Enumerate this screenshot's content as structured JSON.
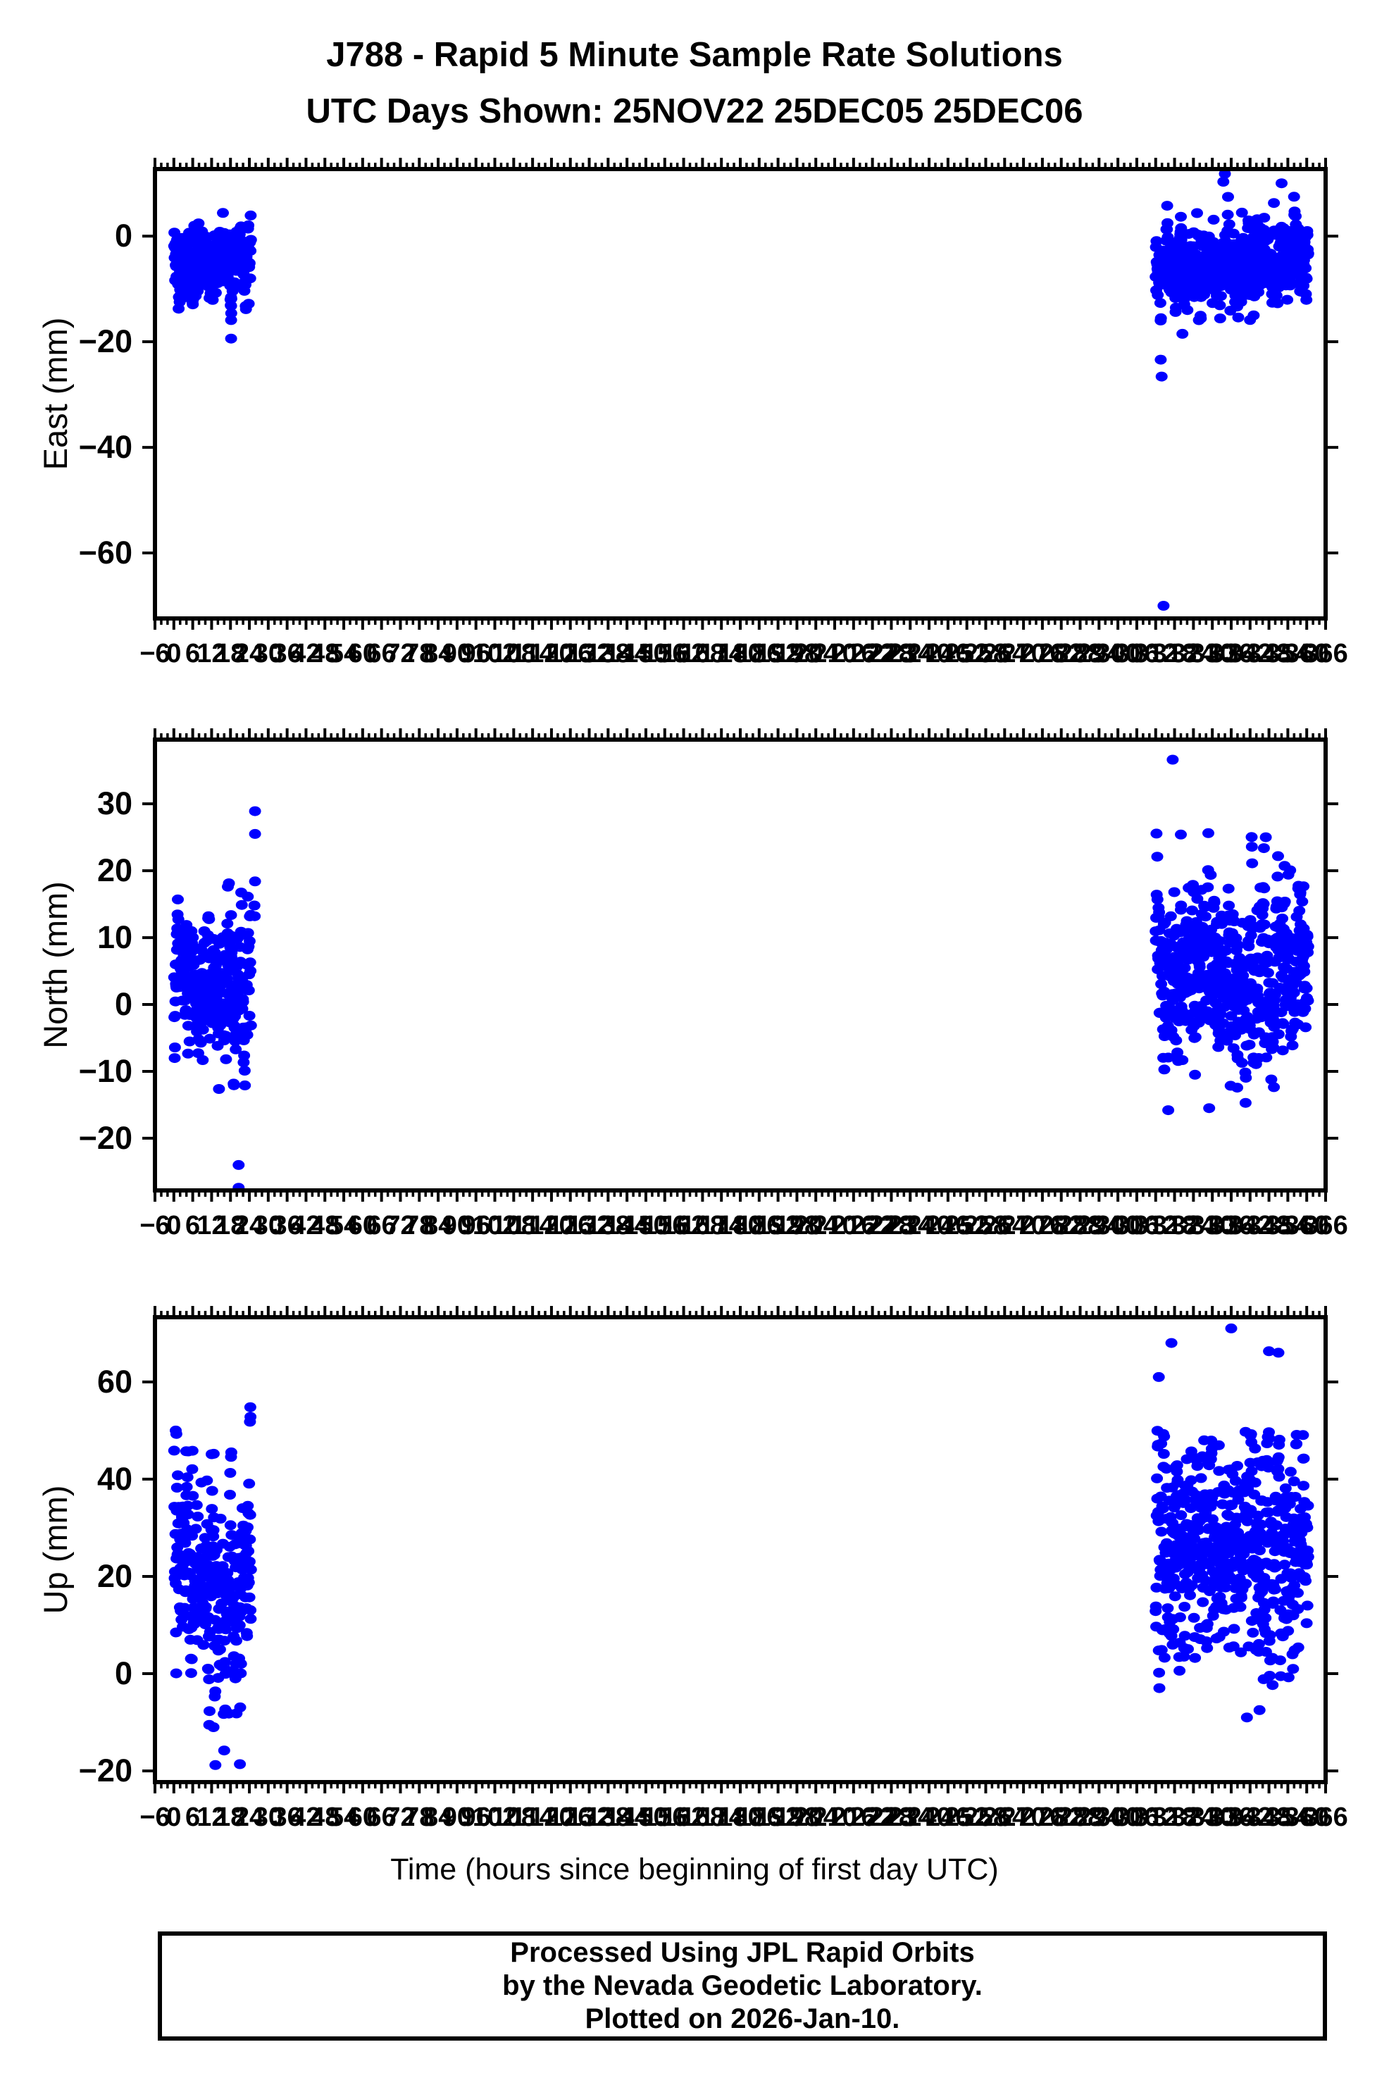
{
  "title": {
    "line1": "J788 - Rapid 5 Minute Sample Rate Solutions",
    "line2": "UTC Days Shown:  25NOV22 25DEC05 25DEC06"
  },
  "footer": {
    "line1": "Processed Using JPL Rapid Orbits",
    "line2": "by the Nevada Geodetic Laboratory.",
    "line3": "Plotted on 2026-Jan-10."
  },
  "colors": {
    "marker": "#0000ff",
    "frame": "#000000",
    "background": "#ffffff"
  },
  "chart_data": {
    "type": "scatter",
    "title": "J788 - Rapid 5 Minute Sample Rate Solutions",
    "subtitle": "UTC Days Shown:  25NOV22 25DEC05 25DEC06",
    "xlabel": "Time (hours since beginning of first day UTC)",
    "xlim": [
      -6,
      366
    ],
    "xtick_label_step": 6,
    "xtick_minor_step": 2,
    "sample_interval_hours": 0.0833,
    "legend": "none",
    "grid": "off",
    "marker_color": "#0000ff",
    "subplots": [
      {
        "ylabel": "East (mm)",
        "ylim": [
          -72.4,
          12.7
        ],
        "yticks": [
          0,
          -20,
          -40,
          -60
        ],
        "clusters": [
          {
            "x_start": 0.1,
            "x_end": 24.5,
            "mean": -4.5,
            "std": 4.0,
            "y_min": -14.0,
            "y_max": 8.6,
            "ar": 0.55,
            "seed": 3
          },
          {
            "x_start": 312.0,
            "x_end": 360.5,
            "mean": -7.0,
            "mean_end": -3.5,
            "std": 4.2,
            "y_min": -16.0,
            "y_max": 7.5,
            "ar": 0.55,
            "seed": 4
          }
        ],
        "outliers": [
          [
            18.2,
            -13.2
          ],
          [
            18.25,
            -14.6
          ],
          [
            18.2,
            -15.9
          ],
          [
            18.2,
            -19.4
          ],
          [
            23.8,
            -12.8
          ],
          [
            313.6,
            -23.4
          ],
          [
            313.9,
            -26.6
          ],
          [
            320.5,
            -18.5
          ],
          [
            333.5,
            10.3
          ],
          [
            334.0,
            11.8
          ],
          [
            352.0,
            10.0
          ],
          [
            314.5,
            -70.0
          ]
        ]
      },
      {
        "ylabel": "North (mm)",
        "ylim": [
          -27.8,
          39.6
        ],
        "yticks": [
          30,
          20,
          10,
          0,
          -10,
          -20
        ],
        "clusters": [
          {
            "x_start": 0.1,
            "x_end": 24.5,
            "mean": 3.5,
            "std": 5.5,
            "y_min": -13.2,
            "y_max": 19.6,
            "ar": 0.55,
            "seed": 5
          },
          {
            "x_start": 312.0,
            "x_end": 360.5,
            "mean": 4.5,
            "std": 6.8,
            "y_min": -16.5,
            "y_max": 26.0,
            "ar": 0.55,
            "seed": 6
          }
        ],
        "outliers": [
          [
            25.8,
            28.9
          ],
          [
            25.8,
            25.5
          ],
          [
            25.8,
            18.4
          ],
          [
            25.6,
            14.8
          ],
          [
            25.7,
            13.2
          ],
          [
            20.6,
            -24.0
          ],
          [
            20.6,
            -27.4
          ],
          [
            317.4,
            36.6
          ],
          [
            320.0,
            25.4
          ],
          [
            347.0,
            25.0
          ],
          [
            316.0,
            -15.8
          ],
          [
            329.0,
            -15.5
          ]
        ]
      },
      {
        "ylabel": "Up (mm)",
        "ylim": [
          -22.3,
          73.3
        ],
        "yticks": [
          60,
          40,
          20,
          0,
          -20
        ],
        "clusters": [
          {
            "x_start": 0.1,
            "x_end": 24.5,
            "mean": 21.0,
            "std": 11.0,
            "y_min": -12.5,
            "y_max": 46.0,
            "ar": 0.55,
            "seed": 7
          },
          {
            "x_start": 312.0,
            "x_end": 360.5,
            "mean": 26.5,
            "std": 12.0,
            "y_min": -9.5,
            "y_max": 50.0,
            "ar": 0.55,
            "seed": 8
          }
        ],
        "outliers": [
          [
            0.6,
            50.0
          ],
          [
            0.8,
            49.3
          ],
          [
            24.3,
            54.8
          ],
          [
            24.35,
            52.8
          ],
          [
            24.2,
            51.8
          ],
          [
            12.6,
            -11.0
          ],
          [
            13.2,
            -18.8
          ],
          [
            16.0,
            -15.8
          ],
          [
            17.5,
            -8.2
          ],
          [
            21.0,
            -18.6
          ],
          [
            313.0,
            61.0
          ],
          [
            317.0,
            68.0
          ],
          [
            336.0,
            71.0
          ],
          [
            348.0,
            66.3
          ],
          [
            351.0,
            66.0
          ],
          [
            341.0,
            -9.0
          ],
          [
            345.0,
            -7.5
          ]
        ]
      }
    ]
  }
}
